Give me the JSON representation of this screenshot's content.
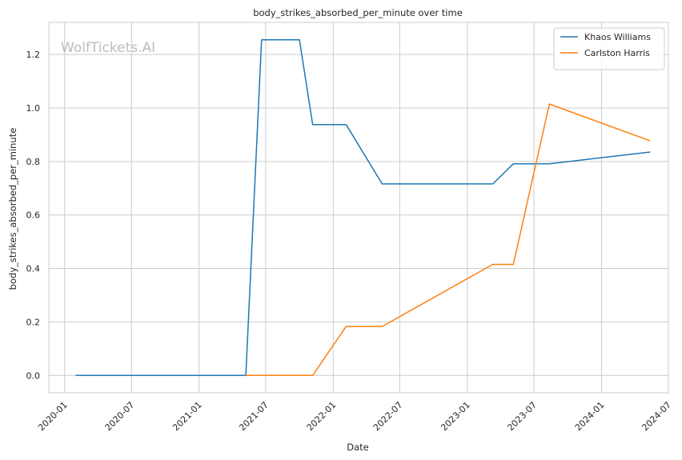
{
  "chart_data": {
    "type": "line",
    "title": "body_strikes_absorbed_per_minute over time",
    "xlabel": "Date",
    "ylabel": "body_strikes_absorbed_per_minute",
    "watermark": "WolfTickets.AI",
    "grid": true,
    "legend_position": "top-right",
    "ylim": [
      -0.065,
      1.32
    ],
    "xlim": [
      "2019-11-19",
      "2024-07-01"
    ],
    "x_ticks": [
      "2020-01",
      "2020-07",
      "2021-01",
      "2021-07",
      "2022-01",
      "2022-07",
      "2023-01",
      "2023-07",
      "2024-01",
      "2024-07"
    ],
    "y_ticks": [
      "0.0",
      "0.2",
      "0.4",
      "0.6",
      "0.8",
      "1.0",
      "1.2"
    ],
    "series": [
      {
        "name": "Khaos Williams",
        "color": "#1f77b4",
        "points": [
          [
            "2020-02-01",
            0.0
          ],
          [
            "2021-05-08",
            0.0
          ],
          [
            "2021-06-20",
            1.255
          ],
          [
            "2021-10-01",
            1.255
          ],
          [
            "2021-11-06",
            0.938
          ],
          [
            "2022-02-05",
            0.938
          ],
          [
            "2022-05-14",
            0.716
          ],
          [
            "2023-03-11",
            0.716
          ],
          [
            "2023-05-06",
            0.791
          ],
          [
            "2023-08-12",
            0.791
          ],
          [
            "2024-05-11",
            0.835
          ]
        ]
      },
      {
        "name": "Carlston Harris",
        "color": "#ff7f0e",
        "points": [
          [
            "2021-05-08",
            0.0
          ],
          [
            "2021-11-06",
            0.0
          ],
          [
            "2022-02-05",
            0.183
          ],
          [
            "2022-05-14",
            0.183
          ],
          [
            "2023-03-11",
            0.415
          ],
          [
            "2023-05-06",
            0.415
          ],
          [
            "2023-08-12",
            1.015
          ],
          [
            "2024-05-11",
            0.878
          ]
        ]
      }
    ]
  }
}
